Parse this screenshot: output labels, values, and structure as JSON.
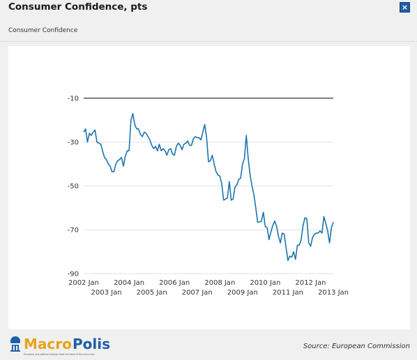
{
  "header": {
    "title": "Consumer Confidence, pts",
    "subtitle": "Consumer Confidence",
    "close_label": "×"
  },
  "footer": {
    "source": "Source: European Commission",
    "logo_primary": "Macro",
    "logo_secondary": "Polis",
    "logo_tagline": "Economic and political analysis from the heart of the euro crisis"
  },
  "colors": {
    "line": "#1b75ad",
    "grid": "#e0e0e0",
    "top_line": "#555555",
    "logo_blue": "#1f5fa6",
    "logo_gold": "#e8a21c"
  },
  "chart_data": {
    "type": "line",
    "title": "Consumer Confidence, pts",
    "series": [
      {
        "name": "Consumer Confidence",
        "x_start": "2002-01",
        "frequency": "monthly",
        "values": [
          -25.5,
          -24.0,
          -30.0,
          -26.0,
          -27.0,
          -25.5,
          -24.5,
          -30.0,
          -30.5,
          -31.0,
          -34.0,
          -37.0,
          -38.0,
          -40.0,
          -41.0,
          -43.5,
          -43.5,
          -40.0,
          -38.5,
          -38.0,
          -37.0,
          -41.0,
          -36.5,
          -34.0,
          -34.0,
          -20.0,
          -17.0,
          -22.0,
          -24.0,
          -24.0,
          -26.5,
          -27.5,
          -25.5,
          -26.0,
          -27.5,
          -29.0,
          -31.5,
          -33.0,
          -32.0,
          -34.0,
          -31.0,
          -34.0,
          -33.0,
          -34.0,
          -36.0,
          -33.5,
          -33.0,
          -35.5,
          -36.0,
          -32.0,
          -30.5,
          -31.5,
          -33.5,
          -31.0,
          -30.5,
          -29.5,
          -31.5,
          -31.5,
          -28.5,
          -27.5,
          -28.0,
          -28.0,
          -29.0,
          -25.5,
          -22.0,
          -28.0,
          -39.0,
          -38.5,
          -36.0,
          -40.0,
          -43.5,
          -45.0,
          -45.5,
          -49.0,
          -56.5,
          -56.0,
          -55.5,
          -48.0,
          -56.5,
          -56.0,
          -50.5,
          -49.5,
          -47.0,
          -46.5,
          -40.0,
          -37.5,
          -27.0,
          -37.5,
          -45.0,
          -50.0,
          -54.0,
          -60.0,
          -66.5,
          -66.5,
          -66.0,
          -62.0,
          -68.5,
          -69.0,
          -74.5,
          -71.0,
          -68.0,
          -66.0,
          -68.5,
          -73.0,
          -76.0,
          -71.5,
          -72.0,
          -78.0,
          -84.0,
          -82.0,
          -82.5,
          -80.0,
          -83.5,
          -77.0,
          -77.0,
          -74.5,
          -68.0,
          -64.5,
          -65.0,
          -76.0,
          -77.5,
          -73.5,
          -72.0,
          -71.5,
          -71.5,
          -70.5,
          -71.5,
          -64.0,
          -67.0,
          -70.5,
          -76.0,
          -69.0,
          -66.5
        ]
      }
    ],
    "x_axis": {
      "tick_labels_row1": [
        "2002 Jan",
        "2004 Jan",
        "2006 Jan",
        "2008 Jan",
        "2010 Jan",
        "2012 Jan"
      ],
      "tick_labels_row2": [
        "2003 Jan",
        "2005 Jan",
        "2007 Jan",
        "2009 Jan",
        "2011 Jan",
        "2013 Jan"
      ],
      "range": [
        "2002-01",
        "2013-06"
      ]
    },
    "y_axis": {
      "ticks": [
        -10,
        -30,
        -50,
        -70,
        -90
      ],
      "ylim": [
        -90,
        -10
      ]
    },
    "xlabel": "",
    "ylabel": "",
    "grid": true,
    "legend": "none"
  }
}
